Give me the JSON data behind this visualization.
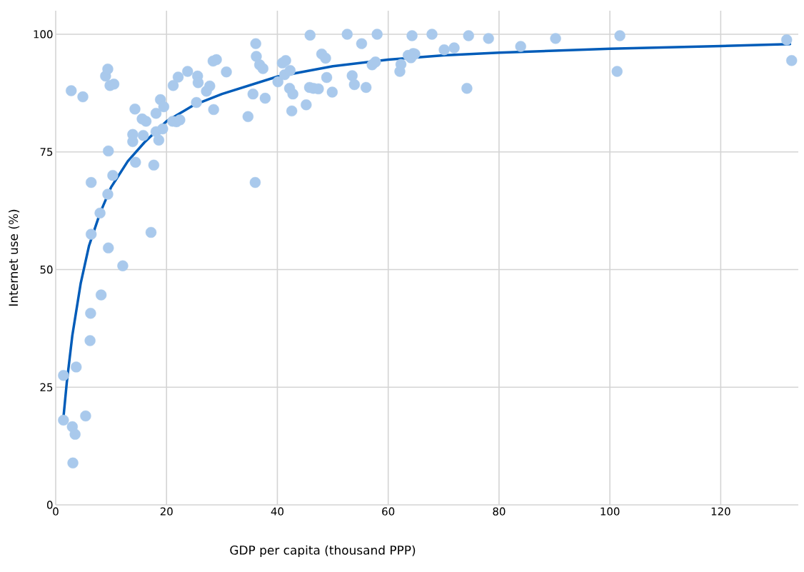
{
  "chart_data": {
    "type": "scatter",
    "xlabel": "GDP per capita (thousand PPP)",
    "ylabel": "Internet use (%)",
    "xlim": [
      0,
      134
    ],
    "ylim": [
      0,
      105
    ],
    "xticks": [
      0,
      20,
      40,
      60,
      80,
      100,
      120
    ],
    "yticks": [
      0,
      25,
      50,
      75,
      100
    ],
    "grid": true,
    "marker": "circle",
    "series": [
      {
        "color": "#a9c9ec",
        "x": [
          1.4,
          1.4,
          2.8,
          3.0,
          3.1,
          3.5,
          3.7,
          4.9,
          5.4,
          6.2,
          6.3,
          6.4,
          6.4,
          8.0,
          8.2,
          9.0,
          9.4,
          9.5,
          9.4,
          9.5,
          9.8,
          10.5,
          10.3,
          12.1,
          14.3,
          13.9,
          13.9,
          14.4,
          15.6,
          15.8,
          16.3,
          17.2,
          17.7,
          18.1,
          18.1,
          18.6,
          18.9,
          19.3,
          19.5,
          21.2,
          21.1,
          21.8,
          22.1,
          22.4,
          23.8,
          25.6,
          25.7,
          25.4,
          27.2,
          27.8,
          28.4,
          29.0,
          28.5,
          30.8,
          34.7,
          35.6,
          36.0,
          36.1,
          36.2,
          36.8,
          37.4,
          37.8,
          40.1,
          40.9,
          41.5,
          41.3,
          42.3,
          42.2,
          42.8,
          42.6,
          45.2,
          45.9,
          45.8,
          46.5,
          47.4,
          48.0,
          48.7,
          48.9,
          49.9,
          52.6,
          53.5,
          53.9,
          55.2,
          56.0,
          57.1,
          57.7,
          58.0,
          62.1,
          62.3,
          63.6,
          64.1,
          64.3,
          64.5,
          64.8,
          67.9,
          70.1,
          71.9,
          74.2,
          74.5,
          78.1,
          83.9,
          90.2,
          101.3,
          101.8,
          131.9,
          132.8
        ],
        "values": [
          27.5,
          18.0,
          88.0,
          16.6,
          8.9,
          15.0,
          29.3,
          86.7,
          18.9,
          34.9,
          40.7,
          57.5,
          68.5,
          62.0,
          44.6,
          91.1,
          92.6,
          75.2,
          66.0,
          54.6,
          89.1,
          89.4,
          70.0,
          50.8,
          84.1,
          78.7,
          77.2,
          72.8,
          82.0,
          78.5,
          81.5,
          57.9,
          72.2,
          83.2,
          79.3,
          77.5,
          86.1,
          79.9,
          84.6,
          89.1,
          81.5,
          81.4,
          90.9,
          81.8,
          92.1,
          91.1,
          89.7,
          85.5,
          87.9,
          89.0,
          94.3,
          94.6,
          84.0,
          92.0,
          82.5,
          87.3,
          68.5,
          98.0,
          95.3,
          93.5,
          92.7,
          86.4,
          89.9,
          93.9,
          94.4,
          91.4,
          92.3,
          88.5,
          87.3,
          83.7,
          85.0,
          99.8,
          88.7,
          88.5,
          88.4,
          95.8,
          94.9,
          90.8,
          87.7,
          100,
          91.2,
          89.3,
          98.0,
          88.7,
          93.5,
          94.1,
          100,
          92.1,
          93.6,
          95.5,
          95.0,
          99.7,
          95.9,
          95.8,
          100,
          96.7,
          97.1,
          88.5,
          99.7,
          99.1,
          97.4,
          99.1,
          92.1,
          99.7,
          98.8,
          94.4
        ]
      },
      {
        "type": "line",
        "color": "#005cb9",
        "marker": "none",
        "x": [
          1.4,
          2,
          3,
          4.5,
          6,
          8,
          10,
          13,
          16,
          20,
          25,
          30,
          40,
          50,
          60,
          70,
          80,
          100,
          120,
          132.5
        ],
        "values": [
          18.6,
          26,
          36,
          47,
          55,
          62,
          67.5,
          73,
          77,
          81.5,
          85,
          87.3,
          91,
          93.2,
          94.6,
          95.5,
          96.1,
          96.9,
          97.5,
          97.9
        ]
      }
    ]
  }
}
